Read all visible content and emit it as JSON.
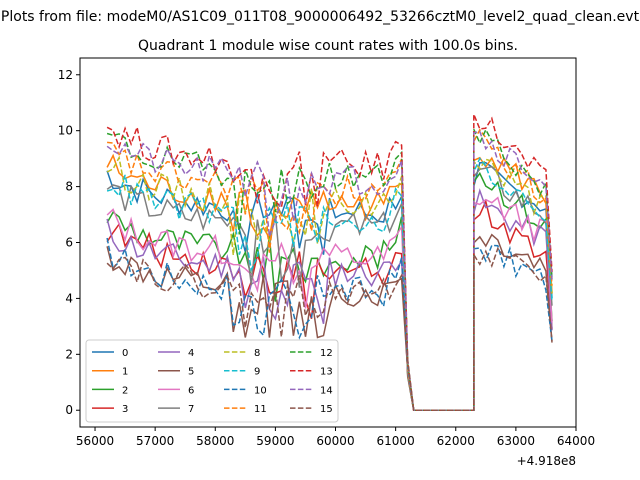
{
  "figure": {
    "suptitle": "Plots from file: modeM0/AS1C09_011T08_9000006492_53266cztM0_level2_quad_clean.evt",
    "title": "Quadrant 1 module wise count rates with 100.0s bins."
  },
  "chart_data": {
    "type": "line",
    "title": "Quadrant 1 module wise count rates with 100.0s bins.",
    "xlabel": "",
    "ylabel": "",
    "x_offset_label": "+4.918e8",
    "xlim": [
      55750,
      64000
    ],
    "ylim": [
      -0.6,
      12.6
    ],
    "x_ticks": [
      56000,
      57000,
      58000,
      59000,
      60000,
      61000,
      62000,
      63000,
      64000
    ],
    "y_ticks": [
      0,
      2,
      4,
      6,
      8,
      10,
      12
    ],
    "grid": false,
    "legend_position": "lower-left",
    "legend_columns": 4,
    "x_segments": [
      {
        "start": 56200,
        "end": 61100,
        "step": 100
      },
      {
        "start": 61100,
        "end": 61300,
        "step": 100
      },
      {
        "start": 61300,
        "end": 62300,
        "step": 100
      },
      {
        "start": 62300,
        "end": 63600,
        "step": 100
      }
    ],
    "series": [
      {
        "name": "0",
        "color": "#1f77b4",
        "dash": "solid",
        "base": 7.3,
        "bump": 8.6,
        "decay": 1.4
      },
      {
        "name": "1",
        "color": "#ff7f0e",
        "dash": "solid",
        "base": 7.6,
        "bump": 9.5,
        "decay": 2.0
      },
      {
        "name": "2",
        "color": "#2ca02c",
        "dash": "solid",
        "base": 5.8,
        "bump": 8.7,
        "decay": 2.3
      },
      {
        "name": "3",
        "color": "#d62728",
        "dash": "solid",
        "base": 5.3,
        "bump": 7.3,
        "decay": 1.8
      },
      {
        "name": "4",
        "color": "#9467bd",
        "dash": "solid",
        "base": 5.2,
        "bump": 7.5,
        "decay": 1.5
      },
      {
        "name": "5",
        "color": "#8c564b",
        "dash": "solid",
        "base": 4.4,
        "bump": 6.4,
        "decay": 1.4
      },
      {
        "name": "6",
        "color": "#e377c2",
        "dash": "solid",
        "base": 5.7,
        "bump": 7.8,
        "decay": 1.6
      },
      {
        "name": "7",
        "color": "#7f7f7f",
        "dash": "solid",
        "base": 6.8,
        "bump": 8.7,
        "decay": 1.9
      },
      {
        "name": "8",
        "color": "#bcbd22",
        "dash": "dashed",
        "base": 7.6,
        "bump": 9.2,
        "decay": 2.2
      },
      {
        "name": "9",
        "color": "#17becf",
        "dash": "dashed",
        "base": 7.1,
        "bump": 8.8,
        "decay": 1.9
      },
      {
        "name": "10",
        "color": "#1f77b4",
        "dash": "dashed",
        "base": 4.5,
        "bump": 6.0,
        "decay": 1.5
      },
      {
        "name": "11",
        "color": "#ff7f0e",
        "dash": "dashed",
        "base": 8.1,
        "bump": 9.8,
        "decay": 2.3
      },
      {
        "name": "12",
        "color": "#2ca02c",
        "dash": "dashed",
        "base": 8.6,
        "bump": 10.2,
        "decay": 2.6
      },
      {
        "name": "13",
        "color": "#d62728",
        "dash": "dashed",
        "base": 9.0,
        "bump": 10.7,
        "decay": 2.8
      },
      {
        "name": "14",
        "color": "#9467bd",
        "dash": "dashed",
        "base": 8.5,
        "bump": 10.0,
        "decay": 2.0
      },
      {
        "name": "15",
        "color": "#8c564b",
        "dash": "dashed",
        "base": 4.5,
        "bump": 5.6,
        "decay": 1.0
      }
    ]
  }
}
